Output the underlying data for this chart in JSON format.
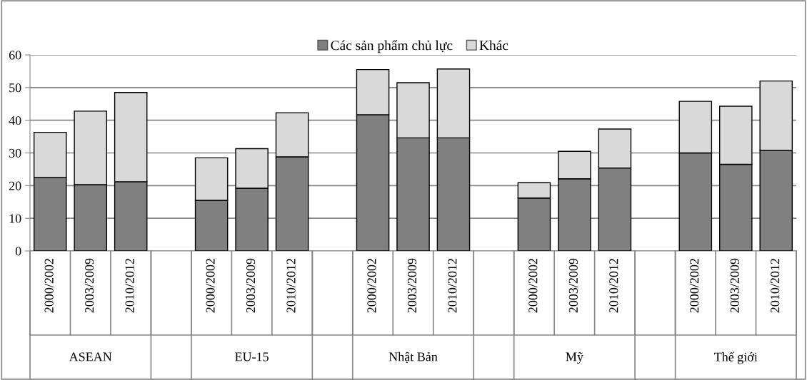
{
  "chart_data": {
    "type": "bar",
    "stacked": true,
    "categories": [
      "2000/2002",
      "2003/2009",
      "2010/2012",
      null,
      "2000/2002",
      "2003/2009",
      "2010/2012",
      null,
      "2000/2002",
      "2003/2009",
      "2010/2012",
      null,
      "2000/2002",
      "2003/2009",
      "2010/2012",
      null,
      "2000/2002",
      "2003/2009",
      "2010/2012"
    ],
    "annotations": [
      "ASEAN",
      "EU-15",
      "Nhật Bản",
      "Mỹ",
      "Thế giới"
    ],
    "series": [
      {
        "name": "Các sản phẩm chủ lực",
        "color": "#808080",
        "values": [
          22.5,
          20.3,
          21.2,
          null,
          15.5,
          19.2,
          28.8,
          null,
          41.7,
          34.6,
          34.6,
          null,
          16.2,
          22.1,
          25.4,
          null,
          30.0,
          26.5,
          30.8
        ]
      },
      {
        "name": "Khác",
        "color": "#d9d9d9",
        "values": [
          13.8,
          22.5,
          27.3,
          null,
          13.0,
          12.1,
          13.5,
          null,
          13.8,
          16.9,
          21.1,
          null,
          4.7,
          8.4,
          11.9,
          null,
          15.8,
          17.8,
          21.2
        ]
      }
    ],
    "ylim": [
      0,
      60
    ],
    "yticks": [
      0,
      10,
      20,
      30,
      40,
      50,
      60
    ],
    "grid": "y",
    "legend": "top"
  }
}
